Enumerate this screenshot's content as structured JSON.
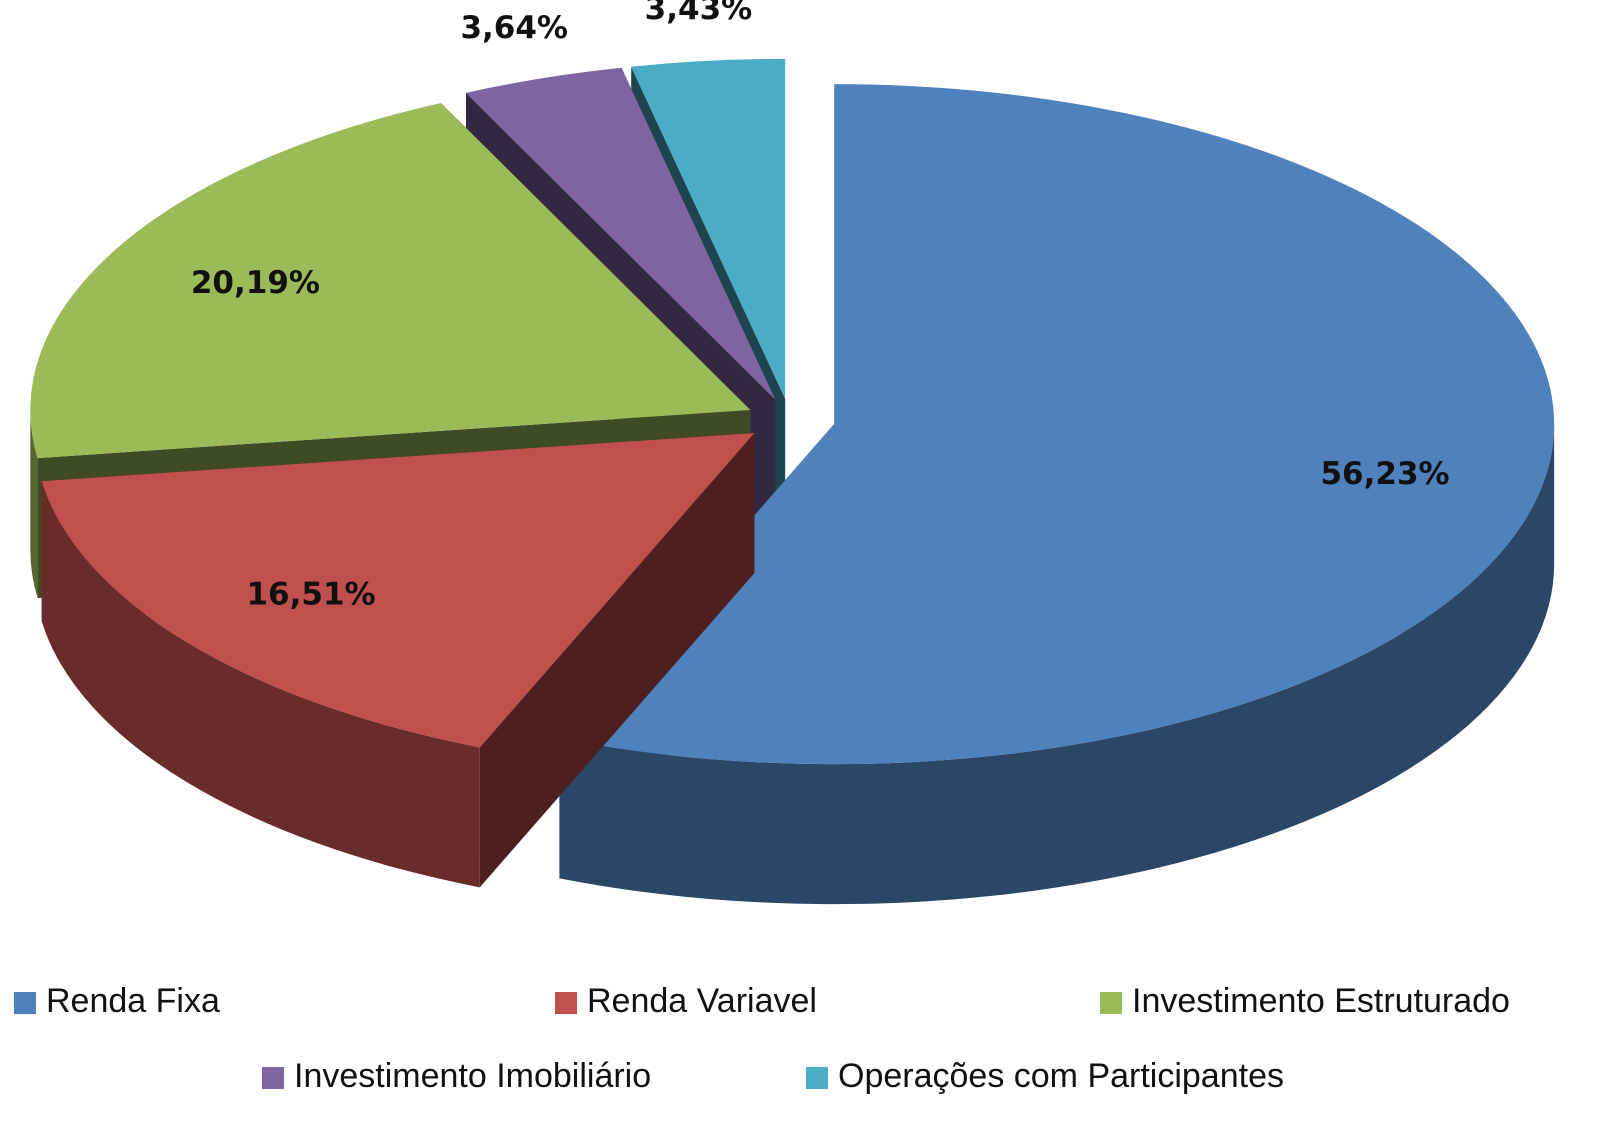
{
  "chart_data": {
    "type": "pie",
    "categories": [
      "Renda Fixa",
      "Renda Variavel",
      "Investimento Estruturado",
      "Investimento Imobiliário",
      "Operações com Participantes"
    ],
    "values": [
      56.23,
      16.51,
      20.19,
      3.64,
      3.43
    ],
    "value_labels": [
      "56,23%",
      "16,51%",
      "20,19%",
      "3,64%",
      "3,43%"
    ],
    "colors": [
      "#4f81bd",
      "#c0504d",
      "#9bbb59",
      "#8064a2",
      "#4bacc6"
    ],
    "legend": "bottom"
  }
}
